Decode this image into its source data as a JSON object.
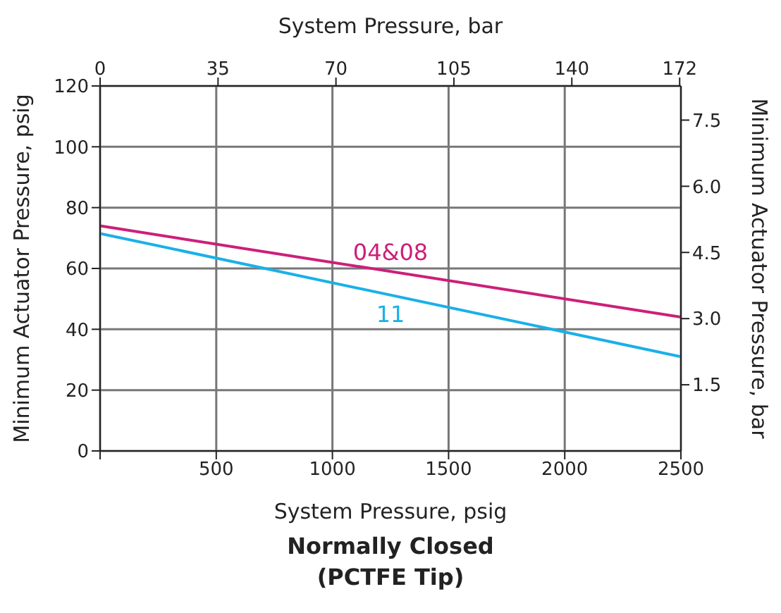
{
  "chart_data": {
    "type": "line",
    "title": "Normally Closed",
    "subtitle": "(PCTFE Tip)",
    "xlabel": "System Pressure, psig",
    "x2label": "System Pressure, bar",
    "ylabel": "Minimum Actuator Pressure, psig",
    "y2label": "Minimum Actuator Pressure, bar",
    "x": [
      0,
      2500
    ],
    "series": [
      {
        "name": "04&08",
        "color": "#cc1f7a",
        "values": [
          74,
          44
        ]
      },
      {
        "name": "11",
        "color": "#1ab0e8",
        "values": [
          71.5,
          31
        ]
      }
    ],
    "xlim": [
      0,
      2500
    ],
    "xticks": [
      {
        "value": 0,
        "label": null
      },
      500,
      1000,
      1500,
      2000,
      2500
    ],
    "x2lim": [
      0,
      172.37
    ],
    "x2ticks": [
      0,
      35,
      70,
      105,
      140,
      172
    ],
    "ylim": [
      0,
      120
    ],
    "yticks": [
      0,
      20,
      40,
      60,
      80,
      100,
      120
    ],
    "y2lim": [
      0,
      8.274
    ],
    "y2ticks": [
      1.5,
      {
        "value": 3,
        "label": "3.0"
      },
      4.5,
      {
        "value": 6,
        "label": "6.0"
      },
      7.5
    ],
    "grid": true,
    "marker": "none",
    "line_style": "solid"
  }
}
